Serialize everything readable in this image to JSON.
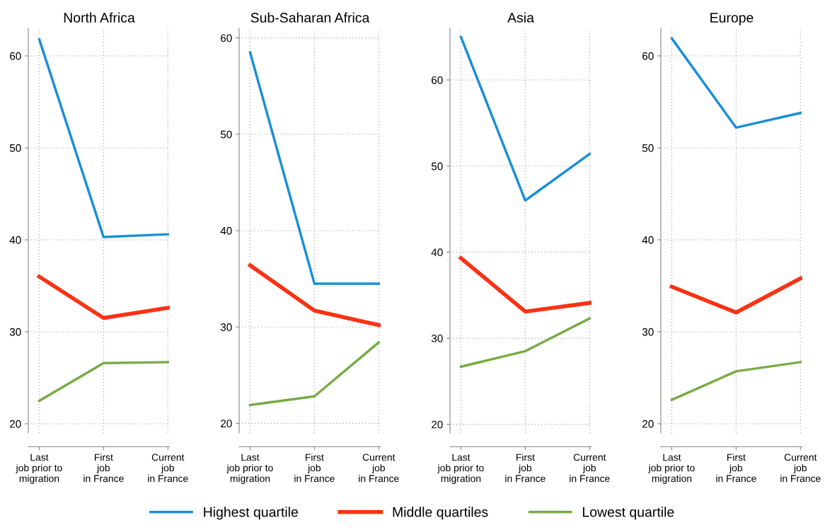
{
  "chart_data": [
    {
      "type": "line",
      "title": "North Africa",
      "categories": [
        "Last\njob prior to\nmigration",
        "First\njob\nin France",
        "Current\njob\nin France"
      ],
      "ylim": [
        19,
        63
      ],
      "yticks": [
        20,
        30,
        40,
        50,
        60
      ],
      "grid": true,
      "legend": "bottom",
      "series": [
        {
          "name": "Highest quartile",
          "color": "#1a8fd6",
          "values": [
            61.8,
            40.3,
            40.6
          ]
        },
        {
          "name": "Middle quartiles",
          "color": "#fa3214",
          "values": [
            36.0,
            31.5,
            32.6
          ]
        },
        {
          "name": "Lowest quartile",
          "color": "#78ab46",
          "values": [
            22.5,
            26.6,
            26.7
          ]
        }
      ]
    },
    {
      "type": "line",
      "title": "Sub-Saharan Africa",
      "categories": [
        "Last\njob prior to\nmigration",
        "First\njob\nin France",
        "Current\njob\nin France"
      ],
      "ylim": [
        19,
        61
      ],
      "yticks": [
        20,
        30,
        40,
        50,
        60
      ],
      "grid": true,
      "series": [
        {
          "name": "Highest quartile",
          "color": "#1a8fd6",
          "values": [
            58.5,
            34.5,
            34.5
          ]
        },
        {
          "name": "Middle quartiles",
          "color": "#fa3214",
          "values": [
            36.4,
            31.7,
            30.2
          ]
        },
        {
          "name": "Lowest quartile",
          "color": "#78ab46",
          "values": [
            21.9,
            22.8,
            28.4
          ]
        }
      ]
    },
    {
      "type": "line",
      "title": "Asia",
      "categories": [
        "Last\njob prior to\nmigration",
        "First\njob\nin France",
        "Current\njob\nin France"
      ],
      "ylim": [
        19,
        66
      ],
      "yticks": [
        20,
        30,
        40,
        50,
        60
      ],
      "grid": true,
      "series": [
        {
          "name": "Highest quartile",
          "color": "#1a8fd6",
          "values": [
            65.0,
            46.0,
            51.4
          ]
        },
        {
          "name": "Middle quartiles",
          "color": "#fa3214",
          "values": [
            39.3,
            33.1,
            34.1
          ]
        },
        {
          "name": "Lowest quartile",
          "color": "#78ab46",
          "values": [
            26.7,
            28.5,
            32.3
          ]
        }
      ]
    },
    {
      "type": "line",
      "title": "Europe",
      "categories": [
        "Last\njob prior to\nmigration",
        "First\njob\nin France",
        "Current\njob\nin France"
      ],
      "ylim": [
        19,
        63
      ],
      "yticks": [
        20,
        30,
        40,
        50,
        60
      ],
      "grid": true,
      "series": [
        {
          "name": "Highest quartile",
          "color": "#1a8fd6",
          "values": [
            61.9,
            52.2,
            53.8
          ]
        },
        {
          "name": "Middle quartiles",
          "color": "#fa3214",
          "values": [
            34.9,
            32.1,
            35.8
          ]
        },
        {
          "name": "Lowest quartile",
          "color": "#78ab46",
          "values": [
            22.6,
            25.7,
            26.7
          ]
        }
      ]
    }
  ]
}
